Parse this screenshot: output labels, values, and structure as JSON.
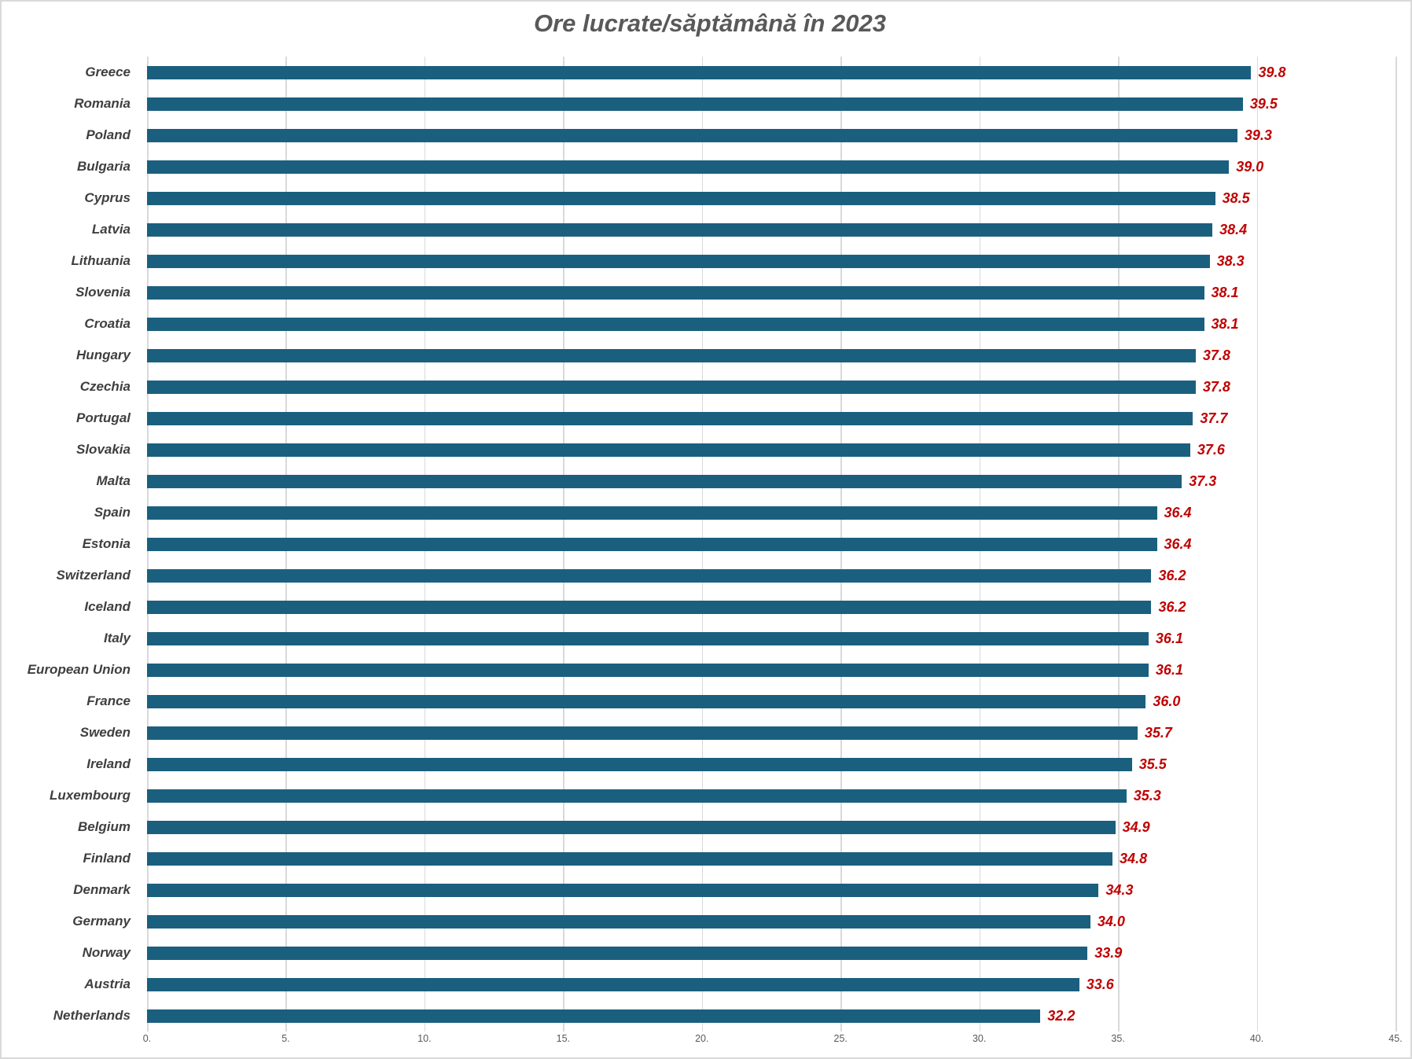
{
  "title": "Ore lucrate/săptămână în 2023",
  "colors": {
    "bar": "#1b5f7f",
    "value_label": "#c00000",
    "category_label": "#3f3f3f",
    "title": "#595959",
    "gridline": "#d9d9d9",
    "tick_label": "#595959"
  },
  "chart_data": {
    "type": "bar",
    "orientation": "horizontal",
    "title": "Ore lucrate/săptămână în 2023",
    "xlabel": "",
    "ylabel": "",
    "xlim": [
      0,
      45
    ],
    "grid": "vertical",
    "legend": "none",
    "x_ticks": [
      0,
      5,
      10,
      15,
      20,
      25,
      30,
      35,
      40,
      45
    ],
    "x_tick_labels": [
      "0.",
      "5.",
      "10.",
      "15.",
      "20.",
      "25.",
      "30.",
      "35.",
      "40.",
      "45."
    ],
    "categories": [
      "Greece",
      "Romania",
      "Poland",
      "Bulgaria",
      "Cyprus",
      "Latvia",
      "Lithuania",
      "Slovenia",
      "Croatia",
      "Hungary",
      "Czechia",
      "Portugal",
      "Slovakia",
      "Malta",
      "Spain",
      "Estonia",
      "Switzerland",
      "Iceland",
      "Italy",
      "European Union",
      "France",
      "Sweden",
      "Ireland",
      "Luxembourg",
      "Belgium",
      "Finland",
      "Denmark",
      "Germany",
      "Norway",
      "Austria",
      "Netherlands"
    ],
    "values": [
      39.8,
      39.5,
      39.3,
      39.0,
      38.5,
      38.4,
      38.3,
      38.1,
      38.1,
      37.8,
      37.8,
      37.7,
      37.6,
      37.3,
      36.4,
      36.4,
      36.2,
      36.2,
      36.1,
      36.1,
      36.0,
      35.7,
      35.5,
      35.3,
      34.9,
      34.8,
      34.3,
      34.0,
      33.9,
      33.6,
      32.2
    ],
    "value_labels": [
      "39.8",
      "39.5",
      "39.3",
      "39.0",
      "38.5",
      "38.4",
      "38.3",
      "38.1",
      "38.1",
      "37.8",
      "37.8",
      "37.7",
      "37.6",
      "37.3",
      "36.4",
      "36.4",
      "36.2",
      "36.2",
      "36.1",
      "36.1",
      "36.0",
      "35.7",
      "35.5",
      "35.3",
      "34.9",
      "34.8",
      "34.3",
      "34.0",
      "33.9",
      "33.6",
      "32.2"
    ]
  }
}
